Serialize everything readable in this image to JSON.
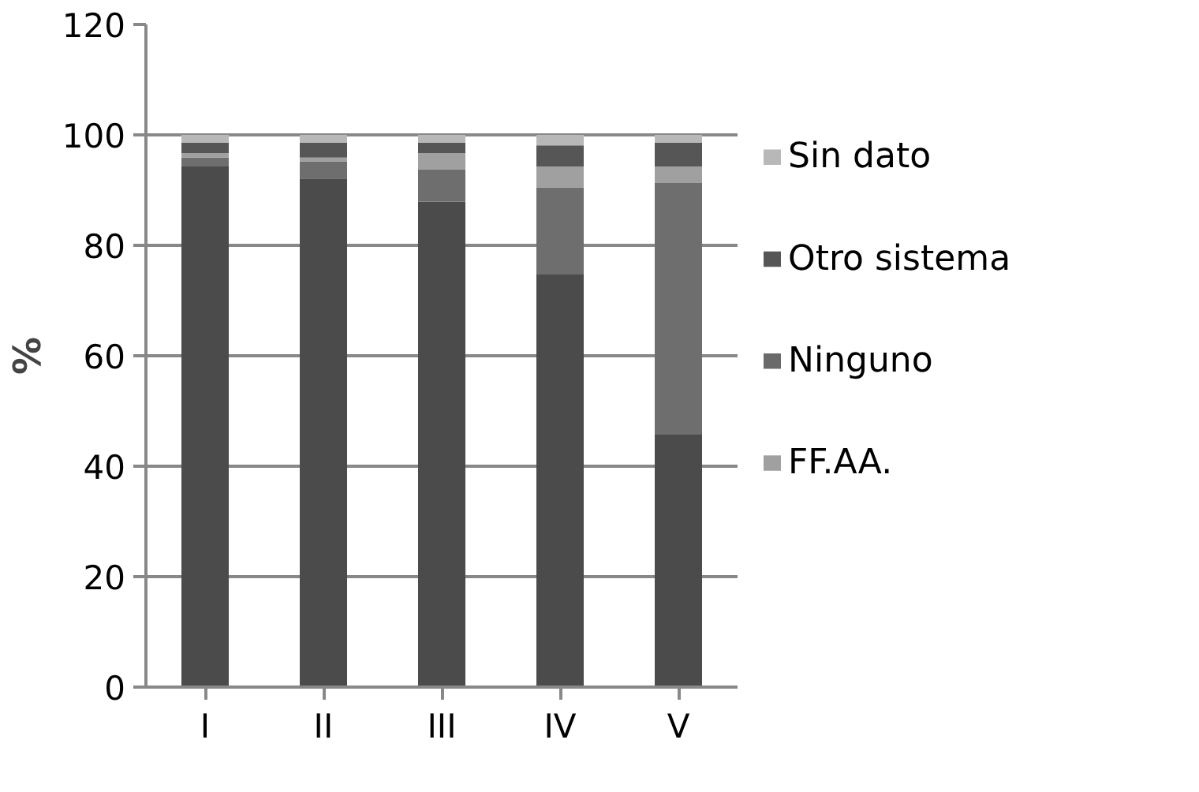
{
  "chart_data": {
    "type": "bar",
    "stacked": true,
    "ylabel": "%",
    "categories": [
      "I",
      "II",
      "III",
      "IV",
      "V"
    ],
    "series": [
      {
        "color": "#4b4b4b",
        "values": [
          94.3,
          92.1,
          87.9,
          74.7,
          45.7
        ]
      },
      {
        "color": "#6e6e6e",
        "values": [
          1.6,
          3.1,
          5.9,
          15.8,
          45.6
        ]
      },
      {
        "name": "FF.AA.",
        "color": "#a0a0a0",
        "values": [
          0.8,
          0.7,
          2.9,
          3.8,
          3.0
        ]
      },
      {
        "name": "Ninguno",
        "color": "#6a6a6a",
        "values": [
          0,
          0,
          0,
          0,
          0
        ]
      },
      {
        "name": "Otro sistema",
        "color": "#565656",
        "values": [
          1.9,
          2.7,
          1.9,
          3.8,
          4.3
        ]
      },
      {
        "name": "Sin dato",
        "color": "#b8b8b8",
        "values": [
          1.4,
          1.4,
          1.4,
          1.9,
          1.4
        ]
      }
    ],
    "ylim": [
      0,
      120
    ],
    "yticks": [
      0,
      20,
      40,
      60,
      80,
      100,
      120
    ],
    "grid": "y",
    "legend": "right"
  }
}
